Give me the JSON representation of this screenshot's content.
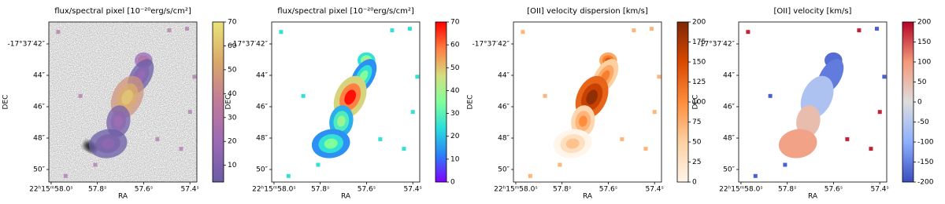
{
  "chart_data": [
    {
      "type": "image",
      "title": "flux/spectral pixel [10⁻²⁰erg/s/cm²]",
      "xlabel": "RA",
      "ylabel": "DEC",
      "xlim": [
        58.01,
        57.37
      ],
      "ylim": [
        50.8,
        40.6
      ],
      "xticks": [
        {
          "value": 58.0,
          "label": "22ʰ15ᵐ58.0ˢ"
        },
        {
          "value": 57.8,
          "label": "57.8ˢ"
        },
        {
          "value": 57.6,
          "label": "57.6ˢ"
        },
        {
          "value": 57.4,
          "label": "57.4ˢ"
        }
      ],
      "yticks": [
        {
          "value": 42,
          "label": "-17°37′42″"
        },
        {
          "value": 44,
          "label": "44″"
        },
        {
          "value": 46,
          "label": "46″"
        },
        {
          "value": 48,
          "label": "48″"
        },
        {
          "value": 50,
          "label": "50″"
        }
      ],
      "clim": [
        3,
        70
      ],
      "cticks": [
        10,
        20,
        30,
        40,
        50,
        60,
        70
      ],
      "cmap": [
        "#6b5ca5",
        "#9b6bb5",
        "#c07a9a",
        "#d9a86a",
        "#eae37a"
      ]
    },
    {
      "type": "image",
      "title": "flux/spectral pixel [10⁻²⁰erg/s/cm²]",
      "xlabel": "RA",
      "ylabel": "DEC",
      "xlim": [
        58.01,
        57.37
      ],
      "ylim": [
        50.8,
        40.6
      ],
      "xticks": [
        {
          "value": 58.0,
          "label": "22ʰ15ᵐ58.0ˢ"
        },
        {
          "value": 57.8,
          "label": "57.8ˢ"
        },
        {
          "value": 57.6,
          "label": "57.6ˢ"
        },
        {
          "value": 57.4,
          "label": "57.4ˢ"
        }
      ],
      "yticks": [
        {
          "value": 42,
          "label": "-17°37′42″"
        },
        {
          "value": 44,
          "label": "44″"
        },
        {
          "value": 46,
          "label": "46″"
        },
        {
          "value": 48,
          "label": "48″"
        },
        {
          "value": 50,
          "label": "50″"
        }
      ],
      "clim": [
        0,
        70
      ],
      "cticks": [
        0,
        10,
        20,
        30,
        40,
        50,
        60,
        70
      ],
      "cmap": [
        "#8000ff",
        "#2c7ef7",
        "#2adddd",
        "#80ff9a",
        "#d4dd80",
        "#ff7e41",
        "#ff0000"
      ]
    },
    {
      "type": "image",
      "title": "[OII] velocity dispersion [km/s]",
      "xlabel": "RA",
      "ylabel": "DEC",
      "xlim": [
        58.01,
        57.37
      ],
      "ylim": [
        50.8,
        40.6
      ],
      "xticks": [
        {
          "value": 58.0,
          "label": "22ʰ15ᵐ58.0ˢ"
        },
        {
          "value": 57.8,
          "label": "57.8ˢ"
        },
        {
          "value": 57.6,
          "label": "57.6ˢ"
        },
        {
          "value": 57.4,
          "label": "57.4ˢ"
        }
      ],
      "yticks": [
        {
          "value": 42,
          "label": "-17°37′42″"
        },
        {
          "value": 44,
          "label": "44″"
        },
        {
          "value": 46,
          "label": "46″"
        },
        {
          "value": 48,
          "label": "48″"
        },
        {
          "value": 50,
          "label": "50″"
        }
      ],
      "clim": [
        0,
        200
      ],
      "cticks": [
        0,
        25,
        50,
        75,
        100,
        125,
        150,
        175,
        200
      ],
      "cmap": [
        "#fff5eb",
        "#fdd0a2",
        "#fd8d3c",
        "#d94801",
        "#7f2704"
      ]
    },
    {
      "type": "image",
      "title": "[OII] velocity [km/s]",
      "xlabel": "RA",
      "ylabel": "DEC",
      "xlim": [
        58.01,
        57.37
      ],
      "ylim": [
        50.8,
        40.6
      ],
      "xticks": [
        {
          "value": 58.0,
          "label": "22ʰ15ᵐ58.0ˢ"
        },
        {
          "value": 57.8,
          "label": "57.8ˢ"
        },
        {
          "value": 57.6,
          "label": "57.6ˢ"
        },
        {
          "value": 57.4,
          "label": "57.4ˢ"
        }
      ],
      "yticks": [
        {
          "value": 42,
          "label": "-17°37′42″"
        },
        {
          "value": 44,
          "label": "44″"
        },
        {
          "value": 46,
          "label": "46″"
        },
        {
          "value": 48,
          "label": "48″"
        },
        {
          "value": 50,
          "label": "50″"
        }
      ],
      "clim": [
        -200,
        200
      ],
      "cticks": [
        -200,
        -150,
        -100,
        -50,
        0,
        50,
        100,
        150,
        200
      ],
      "cmap": [
        "#3b4cc0",
        "#8db0fe",
        "#dddddd",
        "#f49a7b",
        "#b40426"
      ]
    }
  ]
}
